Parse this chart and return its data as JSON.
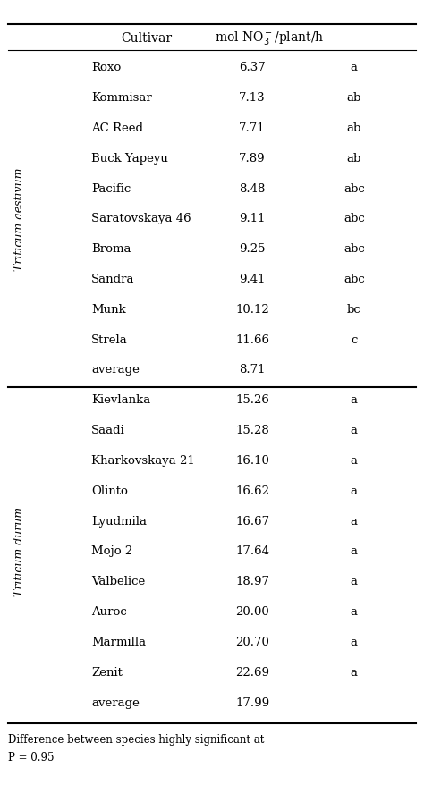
{
  "section1_label": "Triticum aestivum",
  "section1_rows": [
    [
      "Roxo",
      "6.37",
      "a"
    ],
    [
      "Kommisar",
      "7.13",
      "ab"
    ],
    [
      "AC Reed",
      "7.71",
      "ab"
    ],
    [
      "Buck Yapeyu",
      "7.89",
      "ab"
    ],
    [
      "Pacific",
      "8.48",
      "abc"
    ],
    [
      "Saratovskaya 46",
      "9.11",
      "abc"
    ],
    [
      "Broma",
      "9.25",
      "abc"
    ],
    [
      "Sandra",
      "9.41",
      "abc"
    ],
    [
      "Munk",
      "10.12",
      "bc"
    ],
    [
      "Strela",
      "11.66",
      "c"
    ],
    [
      "average",
      "8.71",
      ""
    ]
  ],
  "section2_label": "Triticum durum",
  "section2_rows": [
    [
      "Kievlanka",
      "15.26",
      "a"
    ],
    [
      "Saadi",
      "15.28",
      "a"
    ],
    [
      "Kharkovskaya 21",
      "16.10",
      "a"
    ],
    [
      "Olinto",
      "16.62",
      "a"
    ],
    [
      "Lyudmila",
      "16.67",
      "a"
    ],
    [
      "Mojo 2",
      "17.64",
      "a"
    ],
    [
      "Valbelice",
      "18.97",
      "a"
    ],
    [
      "Auroc",
      "20.00",
      "a"
    ],
    [
      "Marmilla",
      "20.70",
      "a"
    ],
    [
      "Zenit",
      "22.69",
      "a"
    ],
    [
      "average",
      "17.99",
      ""
    ]
  ],
  "footnote1": "Difference between species highly significant at",
  "footnote2": "P = 0.95",
  "bg_color": "#ffffff",
  "text_color": "#000000"
}
